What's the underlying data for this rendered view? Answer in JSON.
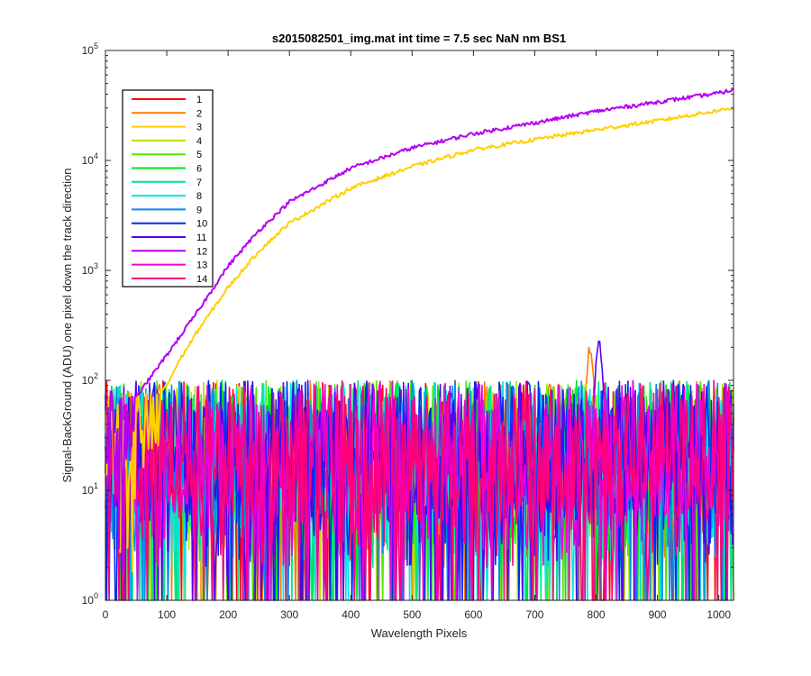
{
  "chart_data": {
    "type": "line",
    "title": "s2015082501_img.mat int time = 7.5 sec  NaN nm BS1",
    "xlabel": "Wavelength Pixels",
    "ylabel": "Signal-BackGround (ADU) one pixel down the track direction",
    "y_scale": "log",
    "xlim": [
      0,
      1024
    ],
    "ylim": [
      1,
      100000
    ],
    "x_ticks": [
      "0",
      "100",
      "200",
      "300",
      "400",
      "500",
      "600",
      "700",
      "800",
      "900",
      "1000"
    ],
    "y_ticks": [
      {
        "base": "10",
        "exp": "0",
        "value": 1
      },
      {
        "base": "10",
        "exp": "1",
        "value": 10
      },
      {
        "base": "10",
        "exp": "2",
        "value": 100
      },
      {
        "base": "10",
        "exp": "3",
        "value": 1000
      },
      {
        "base": "10",
        "exp": "4",
        "value": 10000
      },
      {
        "base": "10",
        "exp": "5",
        "value": 100000
      }
    ],
    "grid": false,
    "legend_position": "top-left",
    "series": [
      {
        "name": "1",
        "color": "#ff0000",
        "kind": "noise",
        "peak": null
      },
      {
        "name": "2",
        "color": "#ff7a00",
        "kind": "noise",
        "peak": {
          "x": 790,
          "y": 200
        }
      },
      {
        "name": "3",
        "color": "#ffd000",
        "kind": "rising",
        "x": [
          90,
          100,
          120,
          150,
          200,
          250,
          300,
          400,
          500,
          600,
          700,
          800,
          900,
          1000,
          1024
        ],
        "y": [
          80,
          90,
          150,
          280,
          700,
          1500,
          2700,
          5600,
          8800,
          12500,
          15500,
          19000,
          23000,
          28500,
          30000
        ]
      },
      {
        "name": "4",
        "color": "#b4e600",
        "kind": "noise",
        "peak": null
      },
      {
        "name": "5",
        "color": "#55e600",
        "kind": "noise",
        "peak": null
      },
      {
        "name": "6",
        "color": "#00e61e",
        "kind": "noise",
        "peak": null
      },
      {
        "name": "7",
        "color": "#00e68c",
        "kind": "noise",
        "peak": null
      },
      {
        "name": "8",
        "color": "#00e6e6",
        "kind": "noise",
        "peak": null
      },
      {
        "name": "9",
        "color": "#008cf0",
        "kind": "noise",
        "peak": null
      },
      {
        "name": "10",
        "color": "#0028f0",
        "kind": "noise",
        "peak": null
      },
      {
        "name": "11",
        "color": "#5a00f0",
        "kind": "noise",
        "peak": {
          "x": 805,
          "y": 220
        }
      },
      {
        "name": "12",
        "color": "#b400f0",
        "kind": "rising",
        "x": [
          50,
          80,
          100,
          150,
          200,
          250,
          300,
          400,
          500,
          600,
          700,
          800,
          900,
          1000,
          1024
        ],
        "y": [
          70,
          120,
          170,
          420,
          1100,
          2300,
          4200,
          8500,
          13000,
          17500,
          22000,
          28000,
          34000,
          41000,
          44000
        ]
      },
      {
        "name": "13",
        "color": "#f000d2",
        "kind": "noise",
        "peak": null
      },
      {
        "name": "14",
        "color": "#ff0078",
        "kind": "noise",
        "peak": null
      }
    ],
    "noise_band": {
      "typical_range": [
        3,
        80
      ],
      "floor": 1
    }
  }
}
